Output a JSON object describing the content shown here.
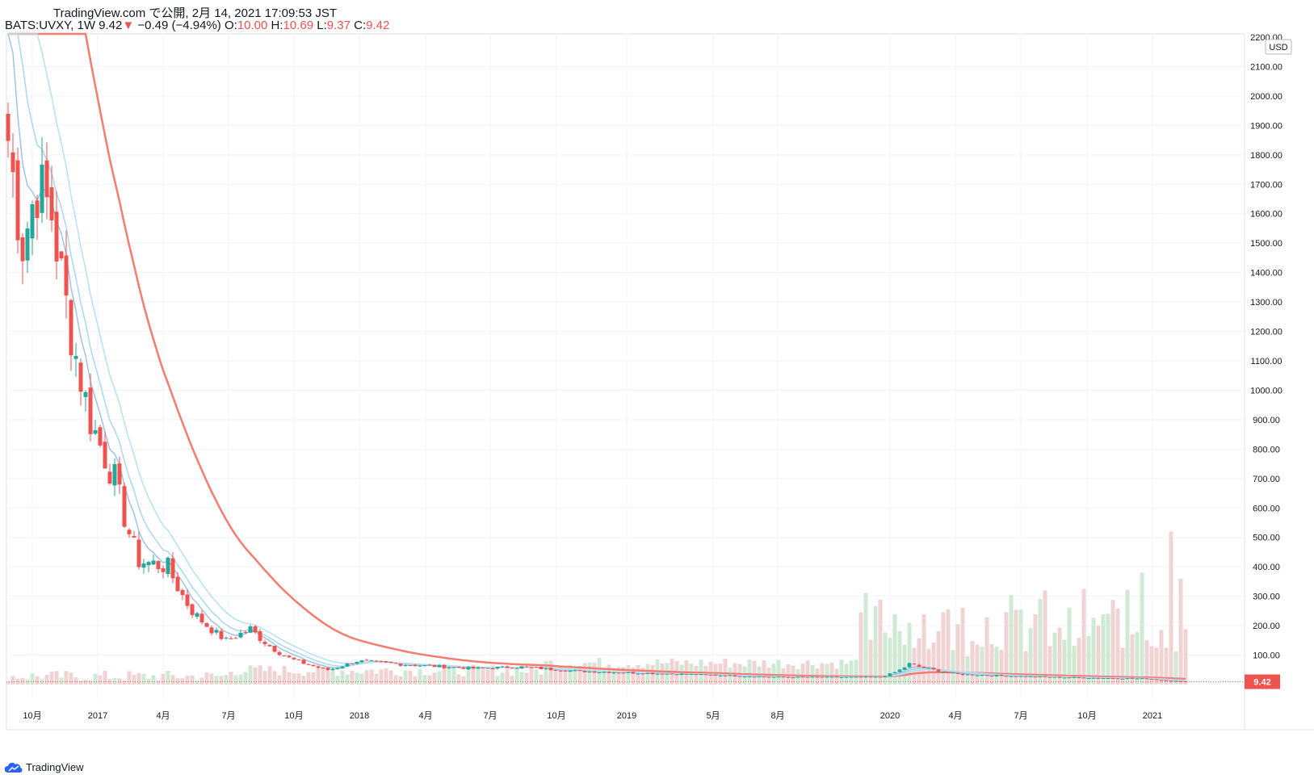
{
  "header": {
    "published": "TradingView.com で公開, 2月 14, 2021 17:09:53 JST",
    "symbol": "BATS:UVXY, 1W",
    "price": "9.42",
    "down_arrow": "▼",
    "change": "−0.49 (−4.94%)",
    "o_label": "O:",
    "o_value": "10.00",
    "h_label": "H:",
    "h_value": "10.69",
    "l_label": "L:",
    "l_value": "9.37",
    "c_label": "C:",
    "c_value": "9.42"
  },
  "footer": {
    "brand": "TradingView"
  },
  "colors": {
    "up": "#26a69a",
    "down": "#ef5350",
    "ma_slow": "#f47c70",
    "ma_a": "#9fc3e8",
    "ma_b": "#a8d8f0",
    "ma_c": "#b5e1f5",
    "vol_up": "#cfe9d4",
    "vol_down": "#f0d4d4",
    "price_tag": "#ef5350"
  },
  "chart_data": {
    "type": "candlestick",
    "currency": "USD",
    "last_price": "9.42",
    "ylim": [
      0,
      2200
    ],
    "y_ticks": [
      "2200.00",
      "2100.00",
      "2000.00",
      "1900.00",
      "1800.00",
      "1700.00",
      "1600.00",
      "1500.00",
      "1400.00",
      "1300.00",
      "1200.00",
      "1100.00",
      "1000.00",
      "900.00",
      "800.00",
      "700.00",
      "600.00",
      "500.00",
      "400.00",
      "300.00",
      "200.00",
      "100.00"
    ],
    "x_ticks": [
      "10月",
      "2017",
      "4月",
      "7月",
      "10月",
      "2018",
      "4月",
      "7月",
      "10月",
      "2019",
      "5月",
      "8月",
      "2020",
      "4月",
      "7月",
      "10月",
      "2021"
    ],
    "anchors": [
      {
        "week": 0,
        "close": 1850
      },
      {
        "week": 3,
        "close": 1500
      },
      {
        "week": 6,
        "close": 1700
      },
      {
        "week": 9,
        "close": 1600
      },
      {
        "week": 13,
        "close": 1200
      },
      {
        "week": 17,
        "close": 900
      },
      {
        "week": 22,
        "close": 700
      },
      {
        "week": 27,
        "close": 420
      },
      {
        "week": 33,
        "close": 400
      },
      {
        "week": 38,
        "close": 250
      },
      {
        "week": 45,
        "close": 150
      },
      {
        "week": 50,
        "close": 190
      },
      {
        "week": 58,
        "close": 90
      },
      {
        "week": 66,
        "close": 50
      },
      {
        "week": 72,
        "close": 80
      },
      {
        "week": 80,
        "close": 70
      },
      {
        "week": 96,
        "close": 55
      },
      {
        "week": 106,
        "close": 60
      },
      {
        "week": 118,
        "close": 45
      },
      {
        "week": 140,
        "close": 35
      },
      {
        "week": 160,
        "close": 25
      },
      {
        "week": 180,
        "close": 25
      },
      {
        "week": 186,
        "close": 70
      },
      {
        "week": 196,
        "close": 35
      },
      {
        "week": 215,
        "close": 25
      },
      {
        "week": 235,
        "close": 20
      },
      {
        "week": 243,
        "close": 9.42
      }
    ],
    "volume_spikes": [
      {
        "week": 186,
        "volume": 210
      },
      {
        "week": 190,
        "volume": 120
      },
      {
        "week": 213,
        "volume": 290
      },
      {
        "week": 225,
        "volume": 200
      },
      {
        "week": 234,
        "volume": 380
      },
      {
        "week": 240,
        "volume": 520
      },
      {
        "week": 242,
        "volume": 360
      }
    ],
    "moving_averages": [
      {
        "type": "ma_slow",
        "start": 2200
      },
      {
        "type": "ma_a"
      },
      {
        "type": "ma_b"
      },
      {
        "type": "ma_c"
      }
    ]
  }
}
